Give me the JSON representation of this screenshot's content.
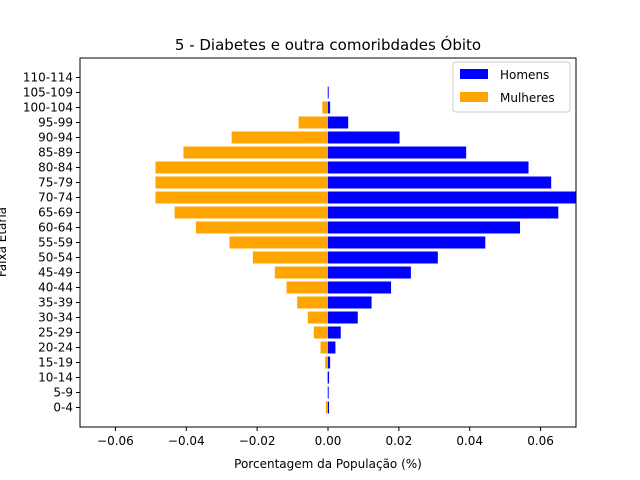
{
  "chart_data": {
    "type": "bar",
    "orientation": "horizontal",
    "title": "5 - Diabetes e outra comoribdades Óbito",
    "xlabel": "Porcentagem da População (%)",
    "ylabel": "Faixa Etária",
    "xlim": [
      -0.07,
      0.07
    ],
    "xticks": [
      -0.06,
      -0.04,
      -0.02,
      0.0,
      0.02,
      0.04,
      0.06
    ],
    "xtick_labels": [
      "−0.06",
      "−0.04",
      "−0.02",
      "0.00",
      "0.02",
      "0.04",
      "0.06"
    ],
    "categories": [
      "0-4",
      "5-9",
      "10-14",
      "15-19",
      "20-24",
      "25-29",
      "30-34",
      "35-39",
      "40-44",
      "45-49",
      "50-54",
      "55-59",
      "60-64",
      "65-69",
      "70-74",
      "75-79",
      "80-84",
      "85-89",
      "90-94",
      "95-99",
      "100-104",
      "105-109",
      "110-114"
    ],
    "series": [
      {
        "name": "Homens",
        "color": "#0000ff",
        "values": [
          0.0003,
          0.0002,
          0.0003,
          0.0006,
          0.0021,
          0.0036,
          0.0084,
          0.0123,
          0.0178,
          0.0234,
          0.031,
          0.0444,
          0.0542,
          0.065,
          0.07,
          0.063,
          0.0566,
          0.039,
          0.0202,
          0.0057,
          0.0006,
          0.0002,
          0.0
        ]
      },
      {
        "name": "Mulheres",
        "color": "#ffa500",
        "values": [
          -0.0006,
          -0.0002,
          -0.0003,
          -0.0008,
          -0.0021,
          -0.004,
          -0.0057,
          -0.0087,
          -0.0117,
          -0.015,
          -0.0212,
          -0.0278,
          -0.0373,
          -0.0433,
          -0.0487,
          -0.0487,
          -0.0487,
          -0.0408,
          -0.0272,
          -0.0083,
          -0.0016,
          -0.0002,
          0.0
        ]
      }
    ],
    "legend": "top-right",
    "grid": false
  }
}
